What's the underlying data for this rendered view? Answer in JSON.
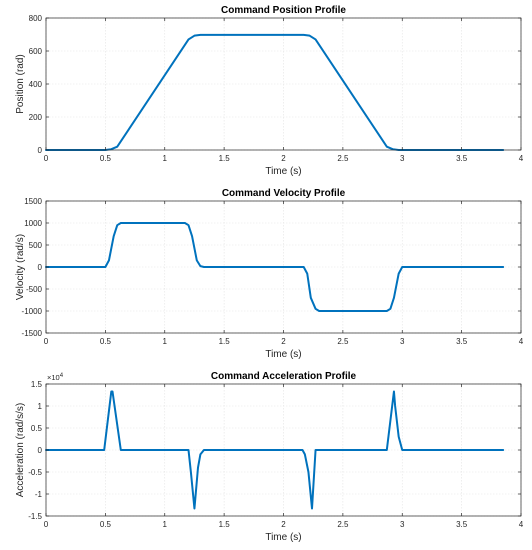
{
  "chart_data": [
    {
      "type": "line",
      "title": "Command Position Profile",
      "xlabel": "Time (s)",
      "ylabel": "Position (rad)",
      "xlim": [
        0,
        4
      ],
      "ylim": [
        0,
        800
      ],
      "xticks": [
        0,
        0.5,
        1,
        1.5,
        2,
        2.5,
        3,
        3.5,
        4
      ],
      "xtick_labels": [
        "0",
        "0.5",
        "1",
        "1.5",
        "2",
        "2.5",
        "3",
        "3.5",
        "4"
      ],
      "yticks": [
        0,
        200,
        400,
        600,
        800
      ],
      "ytick_labels": [
        "0",
        "200",
        "400",
        "600",
        "800"
      ],
      "grid": true,
      "color": "#0072BD",
      "series": [
        {
          "x": [
            0,
            0.5,
            0.55,
            0.6,
            1.2,
            1.25,
            1.3,
            2.17,
            2.22,
            2.27,
            2.87,
            2.92,
            2.97,
            3.85
          ],
          "values": [
            0,
            0,
            5,
            20,
            670,
            693,
            698,
            698,
            693,
            670,
            20,
            5,
            0,
            0
          ]
        }
      ]
    },
    {
      "type": "line",
      "title": "Command Velocity Profile",
      "xlabel": "Time (s)",
      "ylabel": "Velocity (rad/s)",
      "xlim": [
        0,
        4
      ],
      "ylim": [
        -1500,
        1500
      ],
      "xticks": [
        0,
        0.5,
        1,
        1.5,
        2,
        2.5,
        3,
        3.5,
        4
      ],
      "xtick_labels": [
        "0",
        "0.5",
        "1",
        "1.5",
        "2",
        "2.5",
        "3",
        "3.5",
        "4"
      ],
      "yticks": [
        -1500,
        -1000,
        -500,
        0,
        500,
        1000,
        1500
      ],
      "ytick_labels": [
        "-1500",
        "-1000",
        "-500",
        "0",
        "500",
        "1000",
        "1500"
      ],
      "grid": true,
      "color": "#0072BD",
      "series": [
        {
          "x": [
            0,
            0.5,
            0.53,
            0.57,
            0.6,
            0.63,
            1.17,
            1.2,
            1.23,
            1.27,
            1.3,
            1.33,
            2.17,
            2.2,
            2.23,
            2.27,
            2.3,
            2.87,
            2.9,
            2.93,
            2.97,
            3.0,
            3.85
          ],
          "values": [
            0,
            0,
            150,
            700,
            950,
            1000,
            1000,
            950,
            700,
            150,
            20,
            0,
            0,
            -150,
            -700,
            -950,
            -1000,
            -1000,
            -950,
            -700,
            -150,
            0,
            0
          ]
        }
      ]
    },
    {
      "type": "line",
      "title": "Command Acceleration Profile",
      "xlabel": "Time (s)",
      "ylabel": "Acceleration (rad/s/s)",
      "xlim": [
        0,
        4
      ],
      "ylim": [
        -1.5,
        1.5
      ],
      "y_multiplier": "×10",
      "y_exponent": "4",
      "xticks": [
        0,
        0.5,
        1,
        1.5,
        2,
        2.5,
        3,
        3.5,
        4
      ],
      "xtick_labels": [
        "0",
        "0.5",
        "1",
        "1.5",
        "2",
        "2.5",
        "3",
        "3.5",
        "4"
      ],
      "yticks": [
        -1.5,
        -1,
        -0.5,
        0,
        0.5,
        1,
        1.5
      ],
      "ytick_labels": [
        "-1.5",
        "-1",
        "-0.5",
        "0",
        "0.5",
        "1",
        "1.5"
      ],
      "grid": true,
      "color": "#0072BD",
      "series": [
        {
          "x": [
            0,
            0.49,
            0.55,
            0.56,
            0.63,
            1.2,
            1.22,
            1.25,
            1.28,
            1.3,
            1.33,
            2.16,
            2.18,
            2.21,
            2.24,
            2.27,
            2.3,
            2.87,
            2.93,
            2.94,
            2.97,
            2.99,
            3.0,
            3.85
          ],
          "values": [
            0,
            0,
            1.33,
            1.33,
            0,
            0,
            -0.5,
            -1.33,
            -0.4,
            -0.1,
            0,
            0,
            -0.1,
            -0.5,
            -1.33,
            0,
            0,
            0,
            1.33,
            1.0,
            0.3,
            0.1,
            0,
            0
          ]
        }
      ]
    }
  ]
}
